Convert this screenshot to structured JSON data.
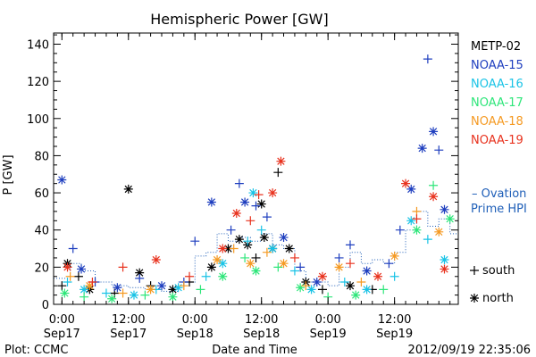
{
  "chart_data": {
    "type": "scatter",
    "title": "Hemispheric Power [GW]",
    "ylabel": "P [GW]",
    "xlabel": "Date and Time",
    "ylim": [
      0,
      146
    ],
    "xlim": [
      "2012-09-16 22:30",
      "2012-09-19 23:30"
    ],
    "y_ticks": [
      0,
      20,
      40,
      60,
      80,
      100,
      120,
      140
    ],
    "x_ticks": [
      {
        "time": "2012-09-17 00:00",
        "label1": "0:00",
        "label2": "Sep17"
      },
      {
        "time": "2012-09-17 12:00",
        "label1": "12:00",
        "label2": "Sep17"
      },
      {
        "time": "2012-09-18 00:00",
        "label1": "0:00",
        "label2": "Sep18"
      },
      {
        "time": "2012-09-18 12:00",
        "label1": "12:00",
        "label2": "Sep18"
      },
      {
        "time": "2012-09-19 00:00",
        "label1": "0:00",
        "label2": "Sep19"
      },
      {
        "time": "2012-09-19 12:00",
        "label1": "12:00",
        "label2": "Sep19"
      }
    ],
    "marker_legend": [
      {
        "symbol": "+",
        "label": "south"
      },
      {
        "symbol": "*",
        "label": "north"
      }
    ],
    "ovation_label": [
      "– Ovation",
      "Prime HPI"
    ],
    "ovation_color": "#1f5fb8",
    "footer_left": "Plot: CCMC",
    "footer_right": "2012/09/19 22:35:06",
    "series": [
      {
        "name": "METP-02",
        "color": "#000000",
        "points": [
          {
            "x": "2012-09-17 00:00",
            "y": 10,
            "h": "south"
          },
          {
            "x": "2012-09-17 01:00",
            "y": 22,
            "h": "north"
          },
          {
            "x": "2012-09-17 03:00",
            "y": 15,
            "h": "south"
          },
          {
            "x": "2012-09-17 05:00",
            "y": 8,
            "h": "north"
          },
          {
            "x": "2012-09-17 09:30",
            "y": 6,
            "h": "south"
          },
          {
            "x": "2012-09-17 12:00",
            "y": 62,
            "h": "north"
          },
          {
            "x": "2012-09-17 14:00",
            "y": 17,
            "h": "north"
          },
          {
            "x": "2012-09-17 16:00",
            "y": 10,
            "h": "south"
          },
          {
            "x": "2012-09-17 20:00",
            "y": 8,
            "h": "north"
          },
          {
            "x": "2012-09-17 23:00",
            "y": 12,
            "h": "south"
          },
          {
            "x": "2012-09-18 03:00",
            "y": 20,
            "h": "north"
          },
          {
            "x": "2012-09-18 06:00",
            "y": 30,
            "h": "north"
          },
          {
            "x": "2012-09-18 08:00",
            "y": 35,
            "h": "north"
          },
          {
            "x": "2012-09-18 09:30",
            "y": 32,
            "h": "north"
          },
          {
            "x": "2012-09-18 11:00",
            "y": 25,
            "h": "south"
          },
          {
            "x": "2012-09-18 12:00",
            "y": 54,
            "h": "north"
          },
          {
            "x": "2012-09-18 12:30",
            "y": 36,
            "h": "north"
          },
          {
            "x": "2012-09-18 14:00",
            "y": 30,
            "h": "north"
          },
          {
            "x": "2012-09-18 15:00",
            "y": 71,
            "h": "south"
          },
          {
            "x": "2012-09-18 17:00",
            "y": 30,
            "h": "north"
          },
          {
            "x": "2012-09-18 20:00",
            "y": 12,
            "h": "north"
          },
          {
            "x": "2012-09-18 23:00",
            "y": 8,
            "h": "south"
          },
          {
            "x": "2012-09-19 04:00",
            "y": 10,
            "h": "north"
          },
          {
            "x": "2012-09-19 08:00",
            "y": 8,
            "h": "south"
          }
        ]
      },
      {
        "name": "NOAA-15",
        "color": "#1f3fbf",
        "points": [
          {
            "x": "2012-09-17 00:00",
            "y": 67,
            "h": "north"
          },
          {
            "x": "2012-09-17 02:00",
            "y": 30,
            "h": "south"
          },
          {
            "x": "2012-09-17 03:30",
            "y": 19,
            "h": "north"
          },
          {
            "x": "2012-09-17 06:00",
            "y": 12,
            "h": "south"
          },
          {
            "x": "2012-09-17 10:00",
            "y": 9,
            "h": "north"
          },
          {
            "x": "2012-09-17 14:00",
            "y": 14,
            "h": "south"
          },
          {
            "x": "2012-09-17 18:00",
            "y": 10,
            "h": "north"
          },
          {
            "x": "2012-09-17 22:00",
            "y": 12,
            "h": "south"
          },
          {
            "x": "2012-09-18 00:00",
            "y": 34,
            "h": "south"
          },
          {
            "x": "2012-09-18 03:00",
            "y": 55,
            "h": "north"
          },
          {
            "x": "2012-09-18 06:30",
            "y": 40,
            "h": "south"
          },
          {
            "x": "2012-09-18 08:00",
            "y": 65,
            "h": "south"
          },
          {
            "x": "2012-09-18 09:00",
            "y": 55,
            "h": "north"
          },
          {
            "x": "2012-09-18 11:00",
            "y": 53,
            "h": "south"
          },
          {
            "x": "2012-09-18 13:00",
            "y": 47,
            "h": "south"
          },
          {
            "x": "2012-09-18 16:00",
            "y": 36,
            "h": "north"
          },
          {
            "x": "2012-09-18 19:00",
            "y": 20,
            "h": "south"
          },
          {
            "x": "2012-09-18 22:00",
            "y": 12,
            "h": "north"
          },
          {
            "x": "2012-09-19 02:00",
            "y": 25,
            "h": "south"
          },
          {
            "x": "2012-09-19 04:00",
            "y": 32,
            "h": "south"
          },
          {
            "x": "2012-09-19 07:00",
            "y": 18,
            "h": "north"
          },
          {
            "x": "2012-09-19 11:00",
            "y": 22,
            "h": "south"
          },
          {
            "x": "2012-09-19 13:00",
            "y": 40,
            "h": "south"
          },
          {
            "x": "2012-09-19 15:00",
            "y": 62,
            "h": "north"
          },
          {
            "x": "2012-09-19 17:00",
            "y": 84,
            "h": "north"
          },
          {
            "x": "2012-09-19 18:00",
            "y": 132,
            "h": "south"
          },
          {
            "x": "2012-09-19 19:00",
            "y": 93,
            "h": "north"
          },
          {
            "x": "2012-09-19 20:00",
            "y": 83,
            "h": "south"
          },
          {
            "x": "2012-09-19 21:00",
            "y": 51,
            "h": "north"
          }
        ]
      },
      {
        "name": "NOAA-16",
        "color": "#19c3e6",
        "points": [
          {
            "x": "2012-09-17 01:00",
            "y": 12,
            "h": "south"
          },
          {
            "x": "2012-09-17 04:00",
            "y": 8,
            "h": "north"
          },
          {
            "x": "2012-09-17 08:00",
            "y": 6,
            "h": "south"
          },
          {
            "x": "2012-09-17 13:00",
            "y": 5,
            "h": "north"
          },
          {
            "x": "2012-09-17 17:00",
            "y": 8,
            "h": "south"
          },
          {
            "x": "2012-09-17 21:00",
            "y": 9,
            "h": "north"
          },
          {
            "x": "2012-09-18 02:00",
            "y": 15,
            "h": "south"
          },
          {
            "x": "2012-09-18 05:00",
            "y": 22,
            "h": "north"
          },
          {
            "x": "2012-09-18 09:30",
            "y": 34,
            "h": "south"
          },
          {
            "x": "2012-09-18 10:30",
            "y": 60,
            "h": "north"
          },
          {
            "x": "2012-09-18 12:00",
            "y": 40,
            "h": "south"
          },
          {
            "x": "2012-09-18 14:00",
            "y": 30,
            "h": "north"
          },
          {
            "x": "2012-09-18 18:00",
            "y": 18,
            "h": "south"
          },
          {
            "x": "2012-09-18 21:00",
            "y": 8,
            "h": "north"
          },
          {
            "x": "2012-09-19 03:00",
            "y": 12,
            "h": "south"
          },
          {
            "x": "2012-09-19 07:00",
            "y": 8,
            "h": "north"
          },
          {
            "x": "2012-09-19 12:00",
            "y": 15,
            "h": "south"
          },
          {
            "x": "2012-09-19 15:00",
            "y": 45,
            "h": "north"
          },
          {
            "x": "2012-09-19 18:00",
            "y": 35,
            "h": "south"
          },
          {
            "x": "2012-09-19 21:00",
            "y": 24,
            "h": "north"
          }
        ]
      },
      {
        "name": "NOAA-17",
        "color": "#2ee67a",
        "points": [
          {
            "x": "2012-09-17 00:30",
            "y": 6,
            "h": "north"
          },
          {
            "x": "2012-09-17 04:00",
            "y": 4,
            "h": "south"
          },
          {
            "x": "2012-09-17 09:00",
            "y": 3,
            "h": "north"
          },
          {
            "x": "2012-09-17 15:00",
            "y": 5,
            "h": "south"
          },
          {
            "x": "2012-09-17 20:00",
            "y": 4,
            "h": "north"
          },
          {
            "x": "2012-09-18 01:00",
            "y": 8,
            "h": "south"
          },
          {
            "x": "2012-09-18 05:00",
            "y": 15,
            "h": "north"
          },
          {
            "x": "2012-09-18 09:00",
            "y": 25,
            "h": "south"
          },
          {
            "x": "2012-09-18 11:00",
            "y": 18,
            "h": "north"
          },
          {
            "x": "2012-09-18 15:00",
            "y": 20,
            "h": "south"
          },
          {
            "x": "2012-09-18 19:00",
            "y": 9,
            "h": "north"
          },
          {
            "x": "2012-09-19 00:00",
            "y": 4,
            "h": "south"
          },
          {
            "x": "2012-09-19 05:00",
            "y": 5,
            "h": "north"
          },
          {
            "x": "2012-09-19 10:00",
            "y": 8,
            "h": "south"
          },
          {
            "x": "2012-09-19 16:00",
            "y": 40,
            "h": "north"
          },
          {
            "x": "2012-09-19 19:00",
            "y": 64,
            "h": "south"
          },
          {
            "x": "2012-09-19 22:00",
            "y": 46,
            "h": "north"
          }
        ]
      },
      {
        "name": "NOAA-18",
        "color": "#f59a23",
        "points": [
          {
            "x": "2012-09-17 01:30",
            "y": 15,
            "h": "south"
          },
          {
            "x": "2012-09-17 05:00",
            "y": 10,
            "h": "north"
          },
          {
            "x": "2012-09-17 11:00",
            "y": 6,
            "h": "south"
          },
          {
            "x": "2012-09-17 16:00",
            "y": 8,
            "h": "north"
          },
          {
            "x": "2012-09-17 22:00",
            "y": 10,
            "h": "south"
          },
          {
            "x": "2012-09-18 04:00",
            "y": 24,
            "h": "north"
          },
          {
            "x": "2012-09-18 07:00",
            "y": 30,
            "h": "south"
          },
          {
            "x": "2012-09-18 10:00",
            "y": 22,
            "h": "north"
          },
          {
            "x": "2012-09-18 13:00",
            "y": 28,
            "h": "south"
          },
          {
            "x": "2012-09-18 16:00",
            "y": 22,
            "h": "north"
          },
          {
            "x": "2012-09-18 20:00",
            "y": 10,
            "h": "south"
          },
          {
            "x": "2012-09-19 02:00",
            "y": 20,
            "h": "north"
          },
          {
            "x": "2012-09-19 06:00",
            "y": 12,
            "h": "south"
          },
          {
            "x": "2012-09-19 12:00",
            "y": 26,
            "h": "north"
          },
          {
            "x": "2012-09-19 16:00",
            "y": 50,
            "h": "south"
          },
          {
            "x": "2012-09-19 20:00",
            "y": 39,
            "h": "north"
          }
        ]
      },
      {
        "name": "NOAA-19",
        "color": "#e8321e",
        "points": [
          {
            "x": "2012-09-17 01:00",
            "y": 20,
            "h": "north"
          },
          {
            "x": "2012-09-17 05:30",
            "y": 12,
            "h": "south"
          },
          {
            "x": "2012-09-17 11:00",
            "y": 20,
            "h": "south"
          },
          {
            "x": "2012-09-17 17:00",
            "y": 24,
            "h": "north"
          },
          {
            "x": "2012-09-17 23:00",
            "y": 15,
            "h": "south"
          },
          {
            "x": "2012-09-18 05:00",
            "y": 30,
            "h": "north"
          },
          {
            "x": "2012-09-18 07:30",
            "y": 49,
            "h": "north"
          },
          {
            "x": "2012-09-18 10:00",
            "y": 45,
            "h": "south"
          },
          {
            "x": "2012-09-18 11:30",
            "y": 59,
            "h": "south"
          },
          {
            "x": "2012-09-18 14:00",
            "y": 60,
            "h": "north"
          },
          {
            "x": "2012-09-18 15:30",
            "y": 77,
            "h": "north"
          },
          {
            "x": "2012-09-18 18:00",
            "y": 25,
            "h": "south"
          },
          {
            "x": "2012-09-18 23:00",
            "y": 15,
            "h": "north"
          },
          {
            "x": "2012-09-19 04:00",
            "y": 22,
            "h": "south"
          },
          {
            "x": "2012-09-19 09:00",
            "y": 15,
            "h": "north"
          },
          {
            "x": "2012-09-19 14:00",
            "y": 65,
            "h": "north"
          },
          {
            "x": "2012-09-19 16:00",
            "y": 46,
            "h": "south"
          },
          {
            "x": "2012-09-19 19:00",
            "y": 58,
            "h": "north"
          },
          {
            "x": "2012-09-19 21:00",
            "y": 19,
            "h": "north"
          }
        ]
      }
    ],
    "ovation_hpi": [
      {
        "x": "2012-09-16 22:30",
        "y": 14
      },
      {
        "x": "2012-09-17 01:30",
        "y": 22
      },
      {
        "x": "2012-09-17 03:30",
        "y": 18
      },
      {
        "x": "2012-09-17 06:00",
        "y": 12
      },
      {
        "x": "2012-09-17 09:00",
        "y": 10
      },
      {
        "x": "2012-09-17 12:00",
        "y": 9
      },
      {
        "x": "2012-09-17 15:00",
        "y": 8
      },
      {
        "x": "2012-09-17 18:00",
        "y": 7
      },
      {
        "x": "2012-09-17 21:00",
        "y": 12
      },
      {
        "x": "2012-09-18 00:00",
        "y": 26
      },
      {
        "x": "2012-09-18 02:00",
        "y": 28
      },
      {
        "x": "2012-09-18 04:00",
        "y": 38
      },
      {
        "x": "2012-09-18 06:00",
        "y": 34
      },
      {
        "x": "2012-09-18 08:00",
        "y": 36
      },
      {
        "x": "2012-09-18 10:00",
        "y": 34
      },
      {
        "x": "2012-09-18 12:00",
        "y": 38
      },
      {
        "x": "2012-09-18 14:00",
        "y": 32
      },
      {
        "x": "2012-09-18 16:00",
        "y": 30
      },
      {
        "x": "2012-09-18 18:00",
        "y": 18
      },
      {
        "x": "2012-09-18 20:00",
        "y": 12
      },
      {
        "x": "2012-09-18 22:00",
        "y": 12
      },
      {
        "x": "2012-09-19 00:00",
        "y": 10
      },
      {
        "x": "2012-09-19 02:00",
        "y": 20
      },
      {
        "x": "2012-09-19 04:00",
        "y": 28
      },
      {
        "x": "2012-09-19 06:00",
        "y": 22
      },
      {
        "x": "2012-09-19 08:00",
        "y": 24
      },
      {
        "x": "2012-09-19 10:00",
        "y": 22
      },
      {
        "x": "2012-09-19 12:00",
        "y": 28
      },
      {
        "x": "2012-09-19 14:00",
        "y": 40
      },
      {
        "x": "2012-09-19 16:00",
        "y": 50
      },
      {
        "x": "2012-09-19 18:00",
        "y": 42
      },
      {
        "x": "2012-09-19 20:00",
        "y": 46
      },
      {
        "x": "2012-09-19 22:00",
        "y": 38
      },
      {
        "x": "2012-09-19 23:30",
        "y": 34
      }
    ]
  }
}
